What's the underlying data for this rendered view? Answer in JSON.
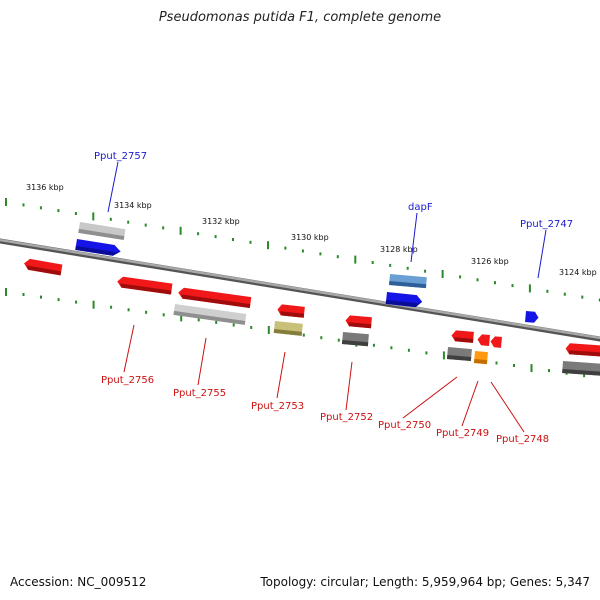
{
  "title": "Pseudomonas putida F1, complete genome",
  "footer": {
    "accession": "Accession: NC_009512",
    "summary": "Topology: circular; Length: 5,959,964 bp; Genes: 5,347"
  },
  "colors": {
    "backbone": "#8a8a8a",
    "tick": "#2a8a2a",
    "forward_label": "#1a1acc",
    "reverse_label": "#cc1111",
    "gene_red": "#ee1111",
    "gene_blue": "#1a1aee",
    "gene_gray": "#b8b8b8",
    "gene_darkgray": "#707070",
    "gene_steel": "#4a86c0",
    "gene_olive": "#b5ad70",
    "gene_orange": "#ff9900"
  },
  "scale_labels": [
    "3136 kbp",
    "3134 kbp",
    "3132 kbp",
    "3130 kbp",
    "3128 kbp",
    "3126 kbp",
    "3124 kbp"
  ],
  "gene_labels": {
    "forward": [
      "Pput_2757",
      "dapF",
      "Pput_2747"
    ],
    "reverse": [
      "Pput_2756",
      "Pput_2755",
      "Pput_2753",
      "Pput_2752",
      "Pput_2750",
      "Pput_2749",
      "Pput_2748"
    ]
  }
}
